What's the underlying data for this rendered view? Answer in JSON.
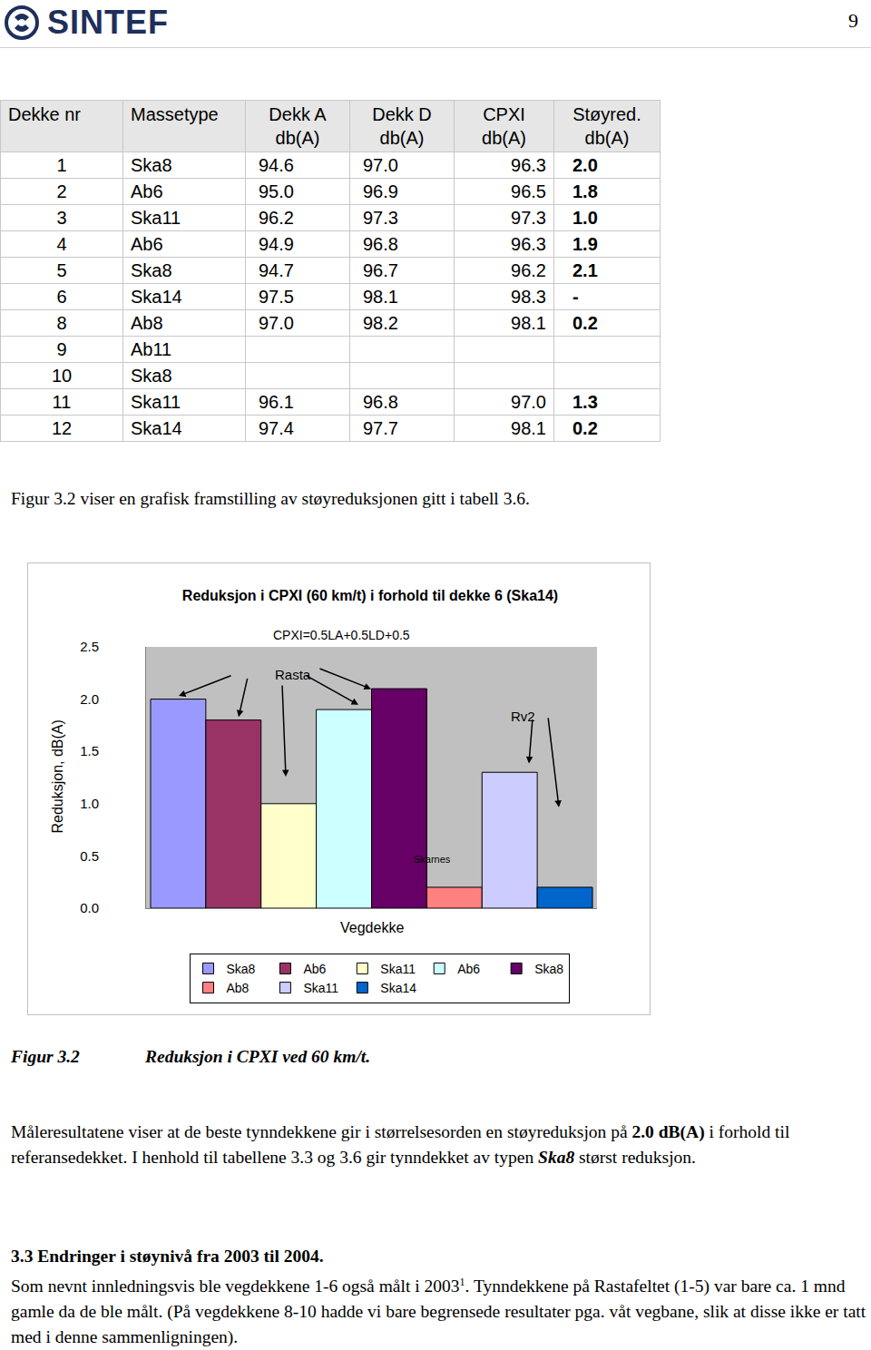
{
  "page": {
    "logo": "SINTEF",
    "number": "9"
  },
  "table": {
    "header": [
      [
        "Dekke nr"
      ],
      [
        "Massetype"
      ],
      [
        "Dekk A",
        "db(A)"
      ],
      [
        "Dekk D",
        "db(A)"
      ],
      [
        "CPXI",
        "db(A)"
      ],
      [
        "Støyred.",
        "db(A)"
      ]
    ],
    "rows": [
      [
        "1",
        "Ska8",
        "94.6",
        "97.0",
        "96.3",
        "2.0"
      ],
      [
        "2",
        "Ab6",
        "95.0",
        "96.9",
        "96.5",
        "1.8"
      ],
      [
        "3",
        "Ska11",
        "96.2",
        "97.3",
        "97.3",
        "1.0"
      ],
      [
        "4",
        "Ab6",
        "94.9",
        "96.8",
        "96.3",
        "1.9"
      ],
      [
        "5",
        "Ska8",
        "94.7",
        "96.7",
        "96.2",
        "2.1"
      ],
      [
        "6",
        "Ska14",
        "97.5",
        "98.1",
        "98.3",
        "-"
      ],
      [
        "8",
        "Ab8",
        "97.0",
        "98.2",
        "98.1",
        "0.2"
      ],
      [
        "9",
        "Ab11",
        null,
        null,
        null,
        null
      ],
      [
        "10",
        "Ska8",
        null,
        null,
        null,
        null
      ],
      [
        "11",
        "Ska11",
        "96.1",
        "96.8",
        "97.0",
        "1.3"
      ],
      [
        "12",
        "Ska14",
        "97.4",
        "97.7",
        "98.1",
        "0.2"
      ]
    ]
  },
  "intro": "Figur 3.2 viser en grafisk framstilling av støyreduksjonen gitt i tabell 3.6.",
  "chart_data": {
    "type": "bar",
    "title": "Reduksjon i CPXI (60 km/t) i forhold til dekke 6 (Ska14)",
    "subtitle": "CPXI=0.5LA+0.5LD+0.5",
    "x_label": "Vegdekke",
    "y_label": "Reduksjon, dB(A)",
    "categories": [
      null
    ],
    "series": [
      {
        "name": "Ska8",
        "color": "#9999ff",
        "values": [
          2.0
        ]
      },
      {
        "name": "Ab6",
        "color": "#993366",
        "values": [
          1.8
        ]
      },
      {
        "name": "Ska11",
        "color": "#ffffcc",
        "values": [
          1.0
        ]
      },
      {
        "name": "Ab6",
        "color": "#ccffff",
        "values": [
          1.9
        ]
      },
      {
        "name": "Ska8",
        "color": "#660066",
        "values": [
          2.1
        ]
      },
      {
        "name": "Ab8",
        "color": "#ff8080",
        "values": [
          0.2
        ]
      },
      {
        "name": "Ska11",
        "color": "#ccccff",
        "values": [
          1.3
        ]
      },
      {
        "name": "Ska14",
        "color": "#0066cc",
        "values": [
          0.2
        ]
      }
    ],
    "ylim": [
      0,
      2.5
    ],
    "yticks": [
      {
        "value": 0,
        "label": "0.0"
      },
      0.5,
      {
        "value": 1,
        "label": "1.0"
      },
      1.5,
      {
        "value": 2,
        "label": "2.0"
      },
      2.5
    ],
    "grid": false,
    "legend": "bottom",
    "tick_labels": "y",
    "annotations": [
      "Rasta",
      "Rv2",
      "Skarnes"
    ]
  },
  "figure_caption": {
    "label": "Figur 3.2",
    "text": "Reduksjon i CPXI ved 60 km/t."
  },
  "paragraph": [
    {
      "text": "Måleresultatene viser at de beste tynndekkene gir i størrelsesorden en støyreduksjon på "
    },
    {
      "text": "2.0 dB(A)",
      "bold": true
    },
    {
      "text": " i forhold til referansedekket. I henhold til tabellene 3.3 og 3.6 gir tynndekket av typen "
    },
    {
      "text": "Ska8",
      "bold": true,
      "italic": true
    },
    {
      "text": " størst reduksjon."
    }
  ],
  "section": {
    "heading": "3.3 Endringer i støynivå fra 2003 til 2004.",
    "paragraph": [
      {
        "text": "Som nevnt innledningsvis ble vegdekkene 1-6 også målt i 2003"
      },
      {
        "text": "1",
        "sup": true
      },
      {
        "text": ". Tynndekkene på Rastafeltet (1-5) var bare ca. 1 mnd gamle da de ble målt. (På vegdekkene 8-10 hadde vi bare begrensede resultater pga. våt vegbane, slik at disse ikke er tatt med i denne sammenligningen)."
      }
    ]
  }
}
